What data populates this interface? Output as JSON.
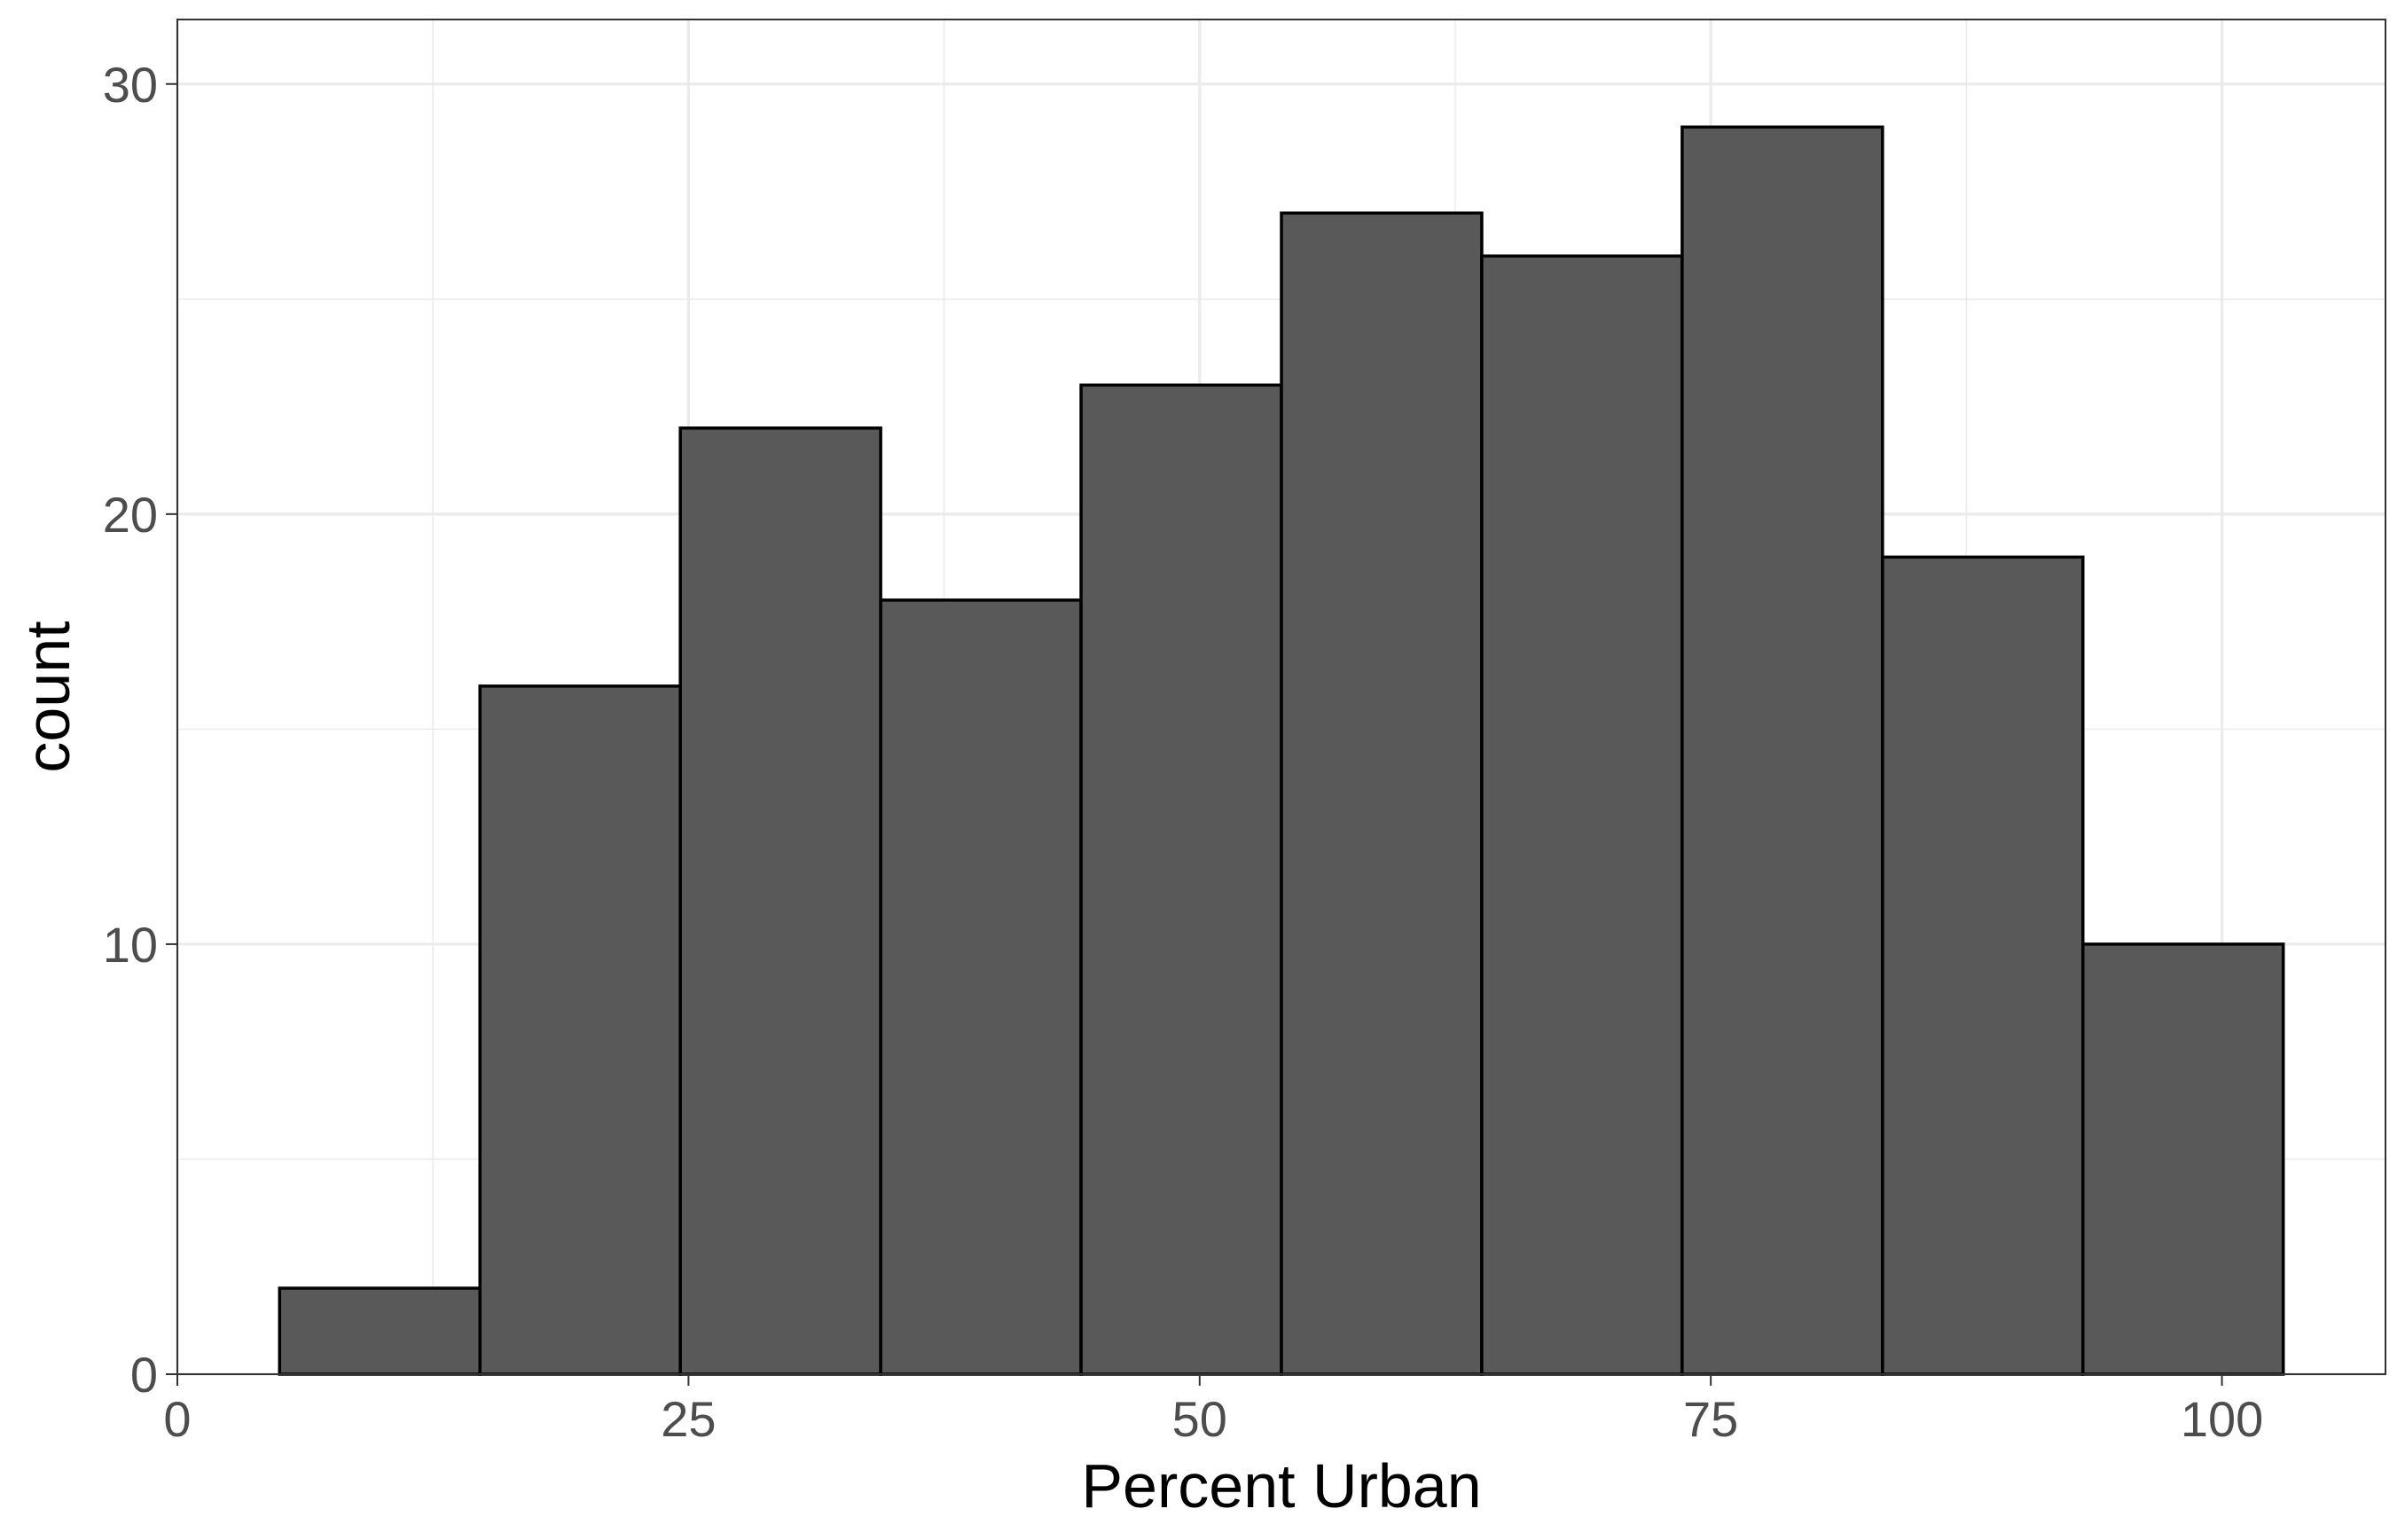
{
  "chart_data": {
    "type": "histogram",
    "title": "",
    "xlabel": "Percent Urban",
    "ylabel": "count",
    "xlim": [
      0,
      108
    ],
    "ylim": [
      0,
      31.5
    ],
    "x_ticks": [
      0,
      25,
      50,
      75,
      100
    ],
    "y_ticks": [
      0,
      10,
      20,
      30
    ],
    "grid": true,
    "bins": [
      {
        "x_start": 5.0,
        "x_end": 14.8,
        "count": 2
      },
      {
        "x_start": 14.8,
        "x_end": 24.6,
        "count": 16
      },
      {
        "x_start": 24.6,
        "x_end": 34.4,
        "count": 22
      },
      {
        "x_start": 34.4,
        "x_end": 44.2,
        "count": 18
      },
      {
        "x_start": 44.2,
        "x_end": 54.0,
        "count": 23
      },
      {
        "x_start": 54.0,
        "x_end": 63.8,
        "count": 27
      },
      {
        "x_start": 63.8,
        "x_end": 73.6,
        "count": 26
      },
      {
        "x_start": 73.6,
        "x_end": 83.4,
        "count": 29
      },
      {
        "x_start": 83.4,
        "x_end": 93.2,
        "count": 19
      },
      {
        "x_start": 93.2,
        "x_end": 103.0,
        "count": 10
      }
    ],
    "colors": {
      "bar_fill": "#595959",
      "bar_stroke": "#000000",
      "grid": "#ebebeb"
    }
  }
}
